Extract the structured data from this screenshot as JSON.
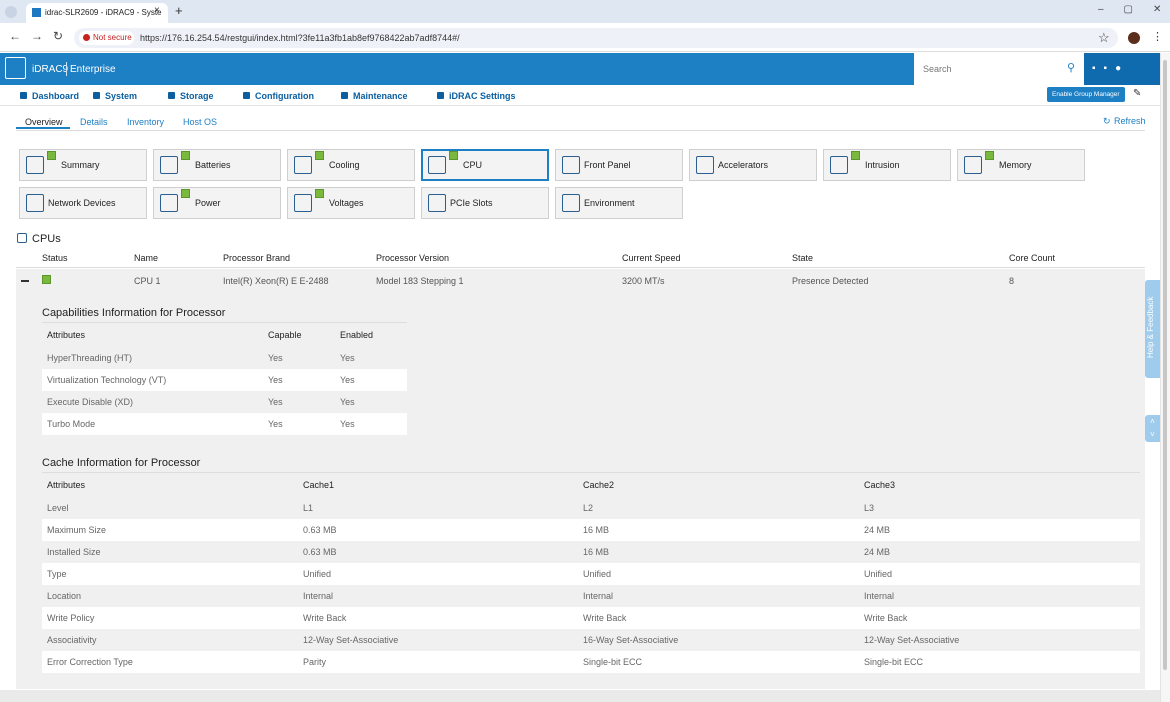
{
  "browser": {
    "tab_title": "idrac-SLR2609 - iDRAC9 - Syste",
    "security": "Not secure",
    "url": "https://176.16.254.54/restgui/index.html?3fe11a3fb1ab8ef9768422ab7adf8744#/"
  },
  "header": {
    "product": "iDRAC9",
    "edition": "Enterprise",
    "search_placeholder": "Search"
  },
  "nav": {
    "items": [
      "Dashboard",
      "System",
      "Storage",
      "Configuration",
      "Maintenance",
      "iDRAC Settings"
    ],
    "group_manager": "Enable Group Manager"
  },
  "tabs": {
    "items": [
      "Overview",
      "Details",
      "Inventory",
      "Host OS"
    ],
    "refresh": "Refresh"
  },
  "tiles": [
    {
      "label": "Summary",
      "checked": true
    },
    {
      "label": "Batteries",
      "checked": true
    },
    {
      "label": "Cooling",
      "checked": true
    },
    {
      "label": "CPU",
      "checked": true,
      "selected": true
    },
    {
      "label": "Front Panel",
      "checked": false
    },
    {
      "label": "Accelerators",
      "checked": false
    },
    {
      "label": "Intrusion",
      "checked": true
    },
    {
      "label": "Memory",
      "checked": true
    },
    {
      "label": "Network Devices",
      "checked": false
    },
    {
      "label": "Power",
      "checked": true
    },
    {
      "label": "Voltages",
      "checked": true
    },
    {
      "label": "PCIe Slots",
      "checked": false
    },
    {
      "label": "Environment",
      "checked": false
    }
  ],
  "cpus": {
    "title": "CPUs",
    "columns": [
      "Status",
      "Name",
      "Processor Brand",
      "Processor Version",
      "Current Speed",
      "State",
      "Core Count"
    ],
    "rows": [
      [
        "CPU 1",
        "Intel(R) Xeon(R) E E-2488",
        "Model 183 Stepping 1",
        "3200 MT/s",
        "Presence Detected",
        "8"
      ]
    ]
  },
  "capabilities": {
    "title": "Capabilities Information for Processor",
    "columns": [
      "Attributes",
      "Capable",
      "Enabled"
    ],
    "rows": [
      [
        "HyperThreading (HT)",
        "Yes",
        "Yes"
      ],
      [
        "Virtualization Technology (VT)",
        "Yes",
        "Yes"
      ],
      [
        "Execute Disable (XD)",
        "Yes",
        "Yes"
      ],
      [
        "Turbo Mode",
        "Yes",
        "Yes"
      ]
    ]
  },
  "cache": {
    "title": "Cache Information for Processor",
    "columns": [
      "Attributes",
      "Cache1",
      "Cache2",
      "Cache3"
    ],
    "rows": [
      [
        "Level",
        "L1",
        "L2",
        "L3"
      ],
      [
        "Maximum Size",
        "0.63 MB",
        "16 MB",
        "24 MB"
      ],
      [
        "Installed Size",
        "0.63 MB",
        "16 MB",
        "24 MB"
      ],
      [
        "Type",
        "Unified",
        "Unified",
        "Unified"
      ],
      [
        "Location",
        "Internal",
        "Internal",
        "Internal"
      ],
      [
        "Write Policy",
        "Write Back",
        "Write Back",
        "Write Back"
      ],
      [
        "Associativity",
        "12-Way Set-Associative",
        "16-Way Set-Associative",
        "12-Way Set-Associative"
      ],
      [
        "Error Correction Type",
        "Parity",
        "Single-bit ECC",
        "Single-bit ECC"
      ]
    ]
  },
  "help": "Help & Feedback"
}
